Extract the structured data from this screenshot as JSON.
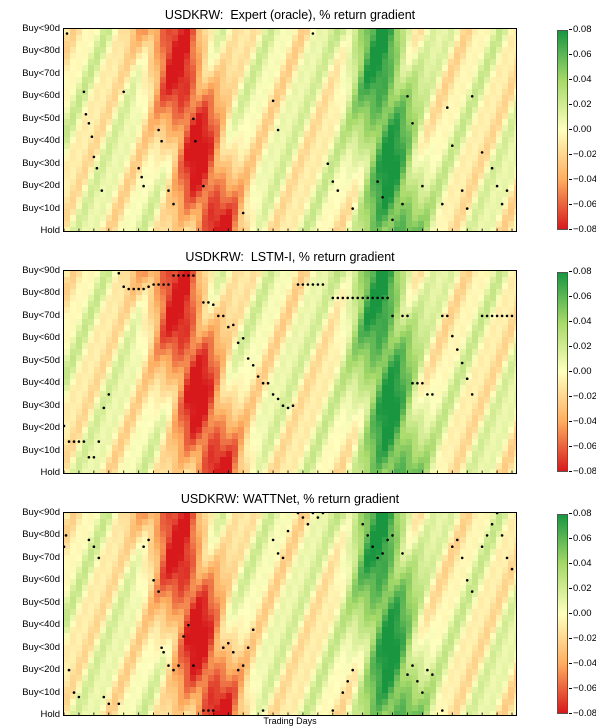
{
  "panels": [
    {
      "title": "USDKRW:  Expert (oracle), % return gradient"
    },
    {
      "title": "USDKRW:  LSTM-I, % return gradient"
    },
    {
      "title": "USDKRW: WATTNet, % return gradient"
    }
  ],
  "xlabel": "Trading Days",
  "colors": {
    "colormap": [
      "#d7191c",
      "#fdae61",
      "#ffffbf",
      "#a6d96a",
      "#1a9641"
    ],
    "markers": "#000000",
    "frame": "#000000"
  },
  "chart_data": [
    {
      "type": "heatmap",
      "title": "USDKRW:  Expert (oracle), % return gradient",
      "xlabel": "",
      "ylabel": "",
      "y_categories": [
        "Hold",
        "Buy<10d",
        "Buy<20d",
        "Buy<30d",
        "Buy<40d",
        "Buy<50d",
        "Buy<60d",
        "Buy<70d",
        "Buy<80d",
        "Buy<90d"
      ],
      "colorbar": {
        "min": -0.08,
        "max": 0.08,
        "ticks": [
          "0.08",
          "0.06",
          "0.04",
          "0.02",
          "0.00",
          "−0.02",
          "−0.04",
          "−0.06",
          "−0.08"
        ]
      },
      "marker_series": {
        "name": "",
        "note_pattern": "sparse",
        "points_day_horizon": [
          [
            3,
            88
          ],
          [
            20,
            62
          ],
          [
            22,
            52
          ],
          [
            25,
            48
          ],
          [
            28,
            42
          ],
          [
            30,
            33
          ],
          [
            33,
            28
          ],
          [
            38,
            18
          ],
          [
            60,
            62
          ],
          [
            75,
            28
          ],
          [
            78,
            24
          ],
          [
            80,
            20
          ],
          [
            95,
            45
          ],
          [
            98,
            40
          ],
          [
            105,
            18
          ],
          [
            110,
            12
          ],
          [
            130,
            50
          ],
          [
            132,
            40
          ],
          [
            140,
            20
          ],
          [
            180,
            8
          ],
          [
            210,
            58
          ],
          [
            215,
            45
          ],
          [
            250,
            88
          ],
          [
            265,
            30
          ],
          [
            270,
            22
          ],
          [
            275,
            18
          ],
          [
            290,
            10
          ],
          [
            315,
            22
          ],
          [
            320,
            15
          ],
          [
            330,
            5
          ],
          [
            340,
            12
          ],
          [
            345,
            60
          ],
          [
            350,
            48
          ],
          [
            360,
            20
          ],
          [
            380,
            12
          ],
          [
            385,
            55
          ],
          [
            390,
            38
          ],
          [
            400,
            18
          ],
          [
            405,
            10
          ],
          [
            410,
            60
          ],
          [
            420,
            35
          ],
          [
            430,
            28
          ],
          [
            435,
            20
          ],
          [
            440,
            12
          ],
          [
            445,
            18
          ]
        ]
      }
    },
    {
      "type": "heatmap",
      "title": "USDKRW:  LSTM-I, % return gradient",
      "y_categories": [
        "Hold",
        "Buy<10d",
        "Buy<20d",
        "Buy<30d",
        "Buy<40d",
        "Buy<50d",
        "Buy<60d",
        "Buy<70d",
        "Buy<80d",
        "Buy<90d"
      ],
      "colorbar": {
        "min": -0.08,
        "max": 0.08,
        "ticks": [
          "0.08",
          "0.06",
          "0.04",
          "0.02",
          "0.00",
          "−0.02",
          "−0.04",
          "−0.06",
          "−0.08"
        ]
      },
      "marker_series": {
        "name": "",
        "points_day_horizon": [
          [
            0,
            21
          ],
          [
            5,
            14
          ],
          [
            10,
            14
          ],
          [
            15,
            14
          ],
          [
            20,
            14
          ],
          [
            25,
            7
          ],
          [
            30,
            7
          ],
          [
            35,
            14
          ],
          [
            40,
            29
          ],
          [
            45,
            35
          ],
          [
            55,
            89
          ],
          [
            60,
            83
          ],
          [
            65,
            82
          ],
          [
            70,
            82
          ],
          [
            75,
            82
          ],
          [
            80,
            82
          ],
          [
            85,
            83
          ],
          [
            90,
            84
          ],
          [
            95,
            84
          ],
          [
            100,
            84
          ],
          [
            105,
            84
          ],
          [
            110,
            88
          ],
          [
            115,
            88
          ],
          [
            120,
            88
          ],
          [
            125,
            88
          ],
          [
            130,
            88
          ],
          [
            140,
            76
          ],
          [
            145,
            76
          ],
          [
            150,
            75
          ],
          [
            155,
            70
          ],
          [
            160,
            70
          ],
          [
            165,
            65
          ],
          [
            170,
            66
          ],
          [
            175,
            58
          ],
          [
            180,
            60
          ],
          [
            185,
            51
          ],
          [
            190,
            48
          ],
          [
            195,
            43
          ],
          [
            200,
            40
          ],
          [
            205,
            40
          ],
          [
            210,
            35
          ],
          [
            215,
            33
          ],
          [
            220,
            30
          ],
          [
            225,
            29
          ],
          [
            230,
            30
          ],
          [
            235,
            84
          ],
          [
            240,
            84
          ],
          [
            245,
            84
          ],
          [
            250,
            84
          ],
          [
            255,
            84
          ],
          [
            260,
            84
          ],
          [
            270,
            78
          ],
          [
            275,
            78
          ],
          [
            280,
            78
          ],
          [
            285,
            78
          ],
          [
            290,
            78
          ],
          [
            295,
            78
          ],
          [
            300,
            78
          ],
          [
            305,
            78
          ],
          [
            310,
            78
          ],
          [
            315,
            78
          ],
          [
            320,
            78
          ],
          [
            325,
            78
          ],
          [
            330,
            70
          ],
          [
            340,
            70
          ],
          [
            345,
            70
          ],
          [
            350,
            40
          ],
          [
            355,
            40
          ],
          [
            360,
            40
          ],
          [
            365,
            35
          ],
          [
            370,
            35
          ],
          [
            380,
            70
          ],
          [
            385,
            70
          ],
          [
            390,
            61
          ],
          [
            395,
            55
          ],
          [
            400,
            49
          ],
          [
            405,
            42
          ],
          [
            410,
            35
          ],
          [
            420,
            70
          ],
          [
            425,
            70
          ],
          [
            430,
            70
          ],
          [
            435,
            70
          ],
          [
            440,
            70
          ],
          [
            445,
            70
          ],
          [
            450,
            70
          ]
        ]
      }
    },
    {
      "type": "heatmap",
      "title": "USDKRW: WATTNet, % return gradient",
      "y_categories": [
        "Hold",
        "Buy<10d",
        "Buy<20d",
        "Buy<30d",
        "Buy<40d",
        "Buy<50d",
        "Buy<60d",
        "Buy<70d",
        "Buy<80d",
        "Buy<90d"
      ],
      "colorbar": {
        "min": -0.08,
        "max": 0.08,
        "ticks": [
          "0.08",
          "0.06",
          "0.04",
          "0.02",
          "0.00",
          "−0.02",
          "−0.04",
          "−0.06",
          "−0.08"
        ]
      },
      "marker_series": {
        "name": "",
        "points_day_horizon": [
          [
            0,
            75
          ],
          [
            2,
            80
          ],
          [
            5,
            20
          ],
          [
            10,
            10
          ],
          [
            15,
            8
          ],
          [
            25,
            78
          ],
          [
            30,
            75
          ],
          [
            35,
            70
          ],
          [
            40,
            8
          ],
          [
            45,
            5
          ],
          [
            55,
            5
          ],
          [
            80,
            75
          ],
          [
            85,
            78
          ],
          [
            90,
            60
          ],
          [
            95,
            55
          ],
          [
            98,
            30
          ],
          [
            100,
            28
          ],
          [
            105,
            22
          ],
          [
            110,
            20
          ],
          [
            115,
            22
          ],
          [
            120,
            35
          ],
          [
            125,
            40
          ],
          [
            130,
            22
          ],
          [
            140,
            2
          ],
          [
            145,
            2
          ],
          [
            150,
            2
          ],
          [
            160,
            30
          ],
          [
            165,
            32
          ],
          [
            170,
            28
          ],
          [
            175,
            20
          ],
          [
            180,
            22
          ],
          [
            185,
            30
          ],
          [
            190,
            38
          ],
          [
            200,
            2
          ],
          [
            210,
            78
          ],
          [
            215,
            72
          ],
          [
            220,
            70
          ],
          [
            225,
            82
          ],
          [
            235,
            90
          ],
          [
            240,
            88
          ],
          [
            245,
            85
          ],
          [
            250,
            90
          ],
          [
            255,
            88
          ],
          [
            260,
            90
          ],
          [
            270,
            2
          ],
          [
            280,
            10
          ],
          [
            285,
            15
          ],
          [
            290,
            20
          ],
          [
            300,
            85
          ],
          [
            305,
            80
          ],
          [
            310,
            75
          ],
          [
            315,
            70
          ],
          [
            320,
            72
          ],
          [
            325,
            78
          ],
          [
            330,
            80
          ],
          [
            340,
            72
          ],
          [
            345,
            18
          ],
          [
            350,
            22
          ],
          [
            355,
            15
          ],
          [
            360,
            10
          ],
          [
            365,
            20
          ],
          [
            370,
            18
          ],
          [
            380,
            2
          ],
          [
            390,
            75
          ],
          [
            395,
            78
          ],
          [
            400,
            70
          ],
          [
            405,
            60
          ],
          [
            410,
            55
          ],
          [
            420,
            75
          ],
          [
            425,
            80
          ],
          [
            430,
            85
          ],
          [
            435,
            90
          ],
          [
            440,
            80
          ],
          [
            445,
            70
          ],
          [
            450,
            65
          ]
        ]
      }
    }
  ]
}
